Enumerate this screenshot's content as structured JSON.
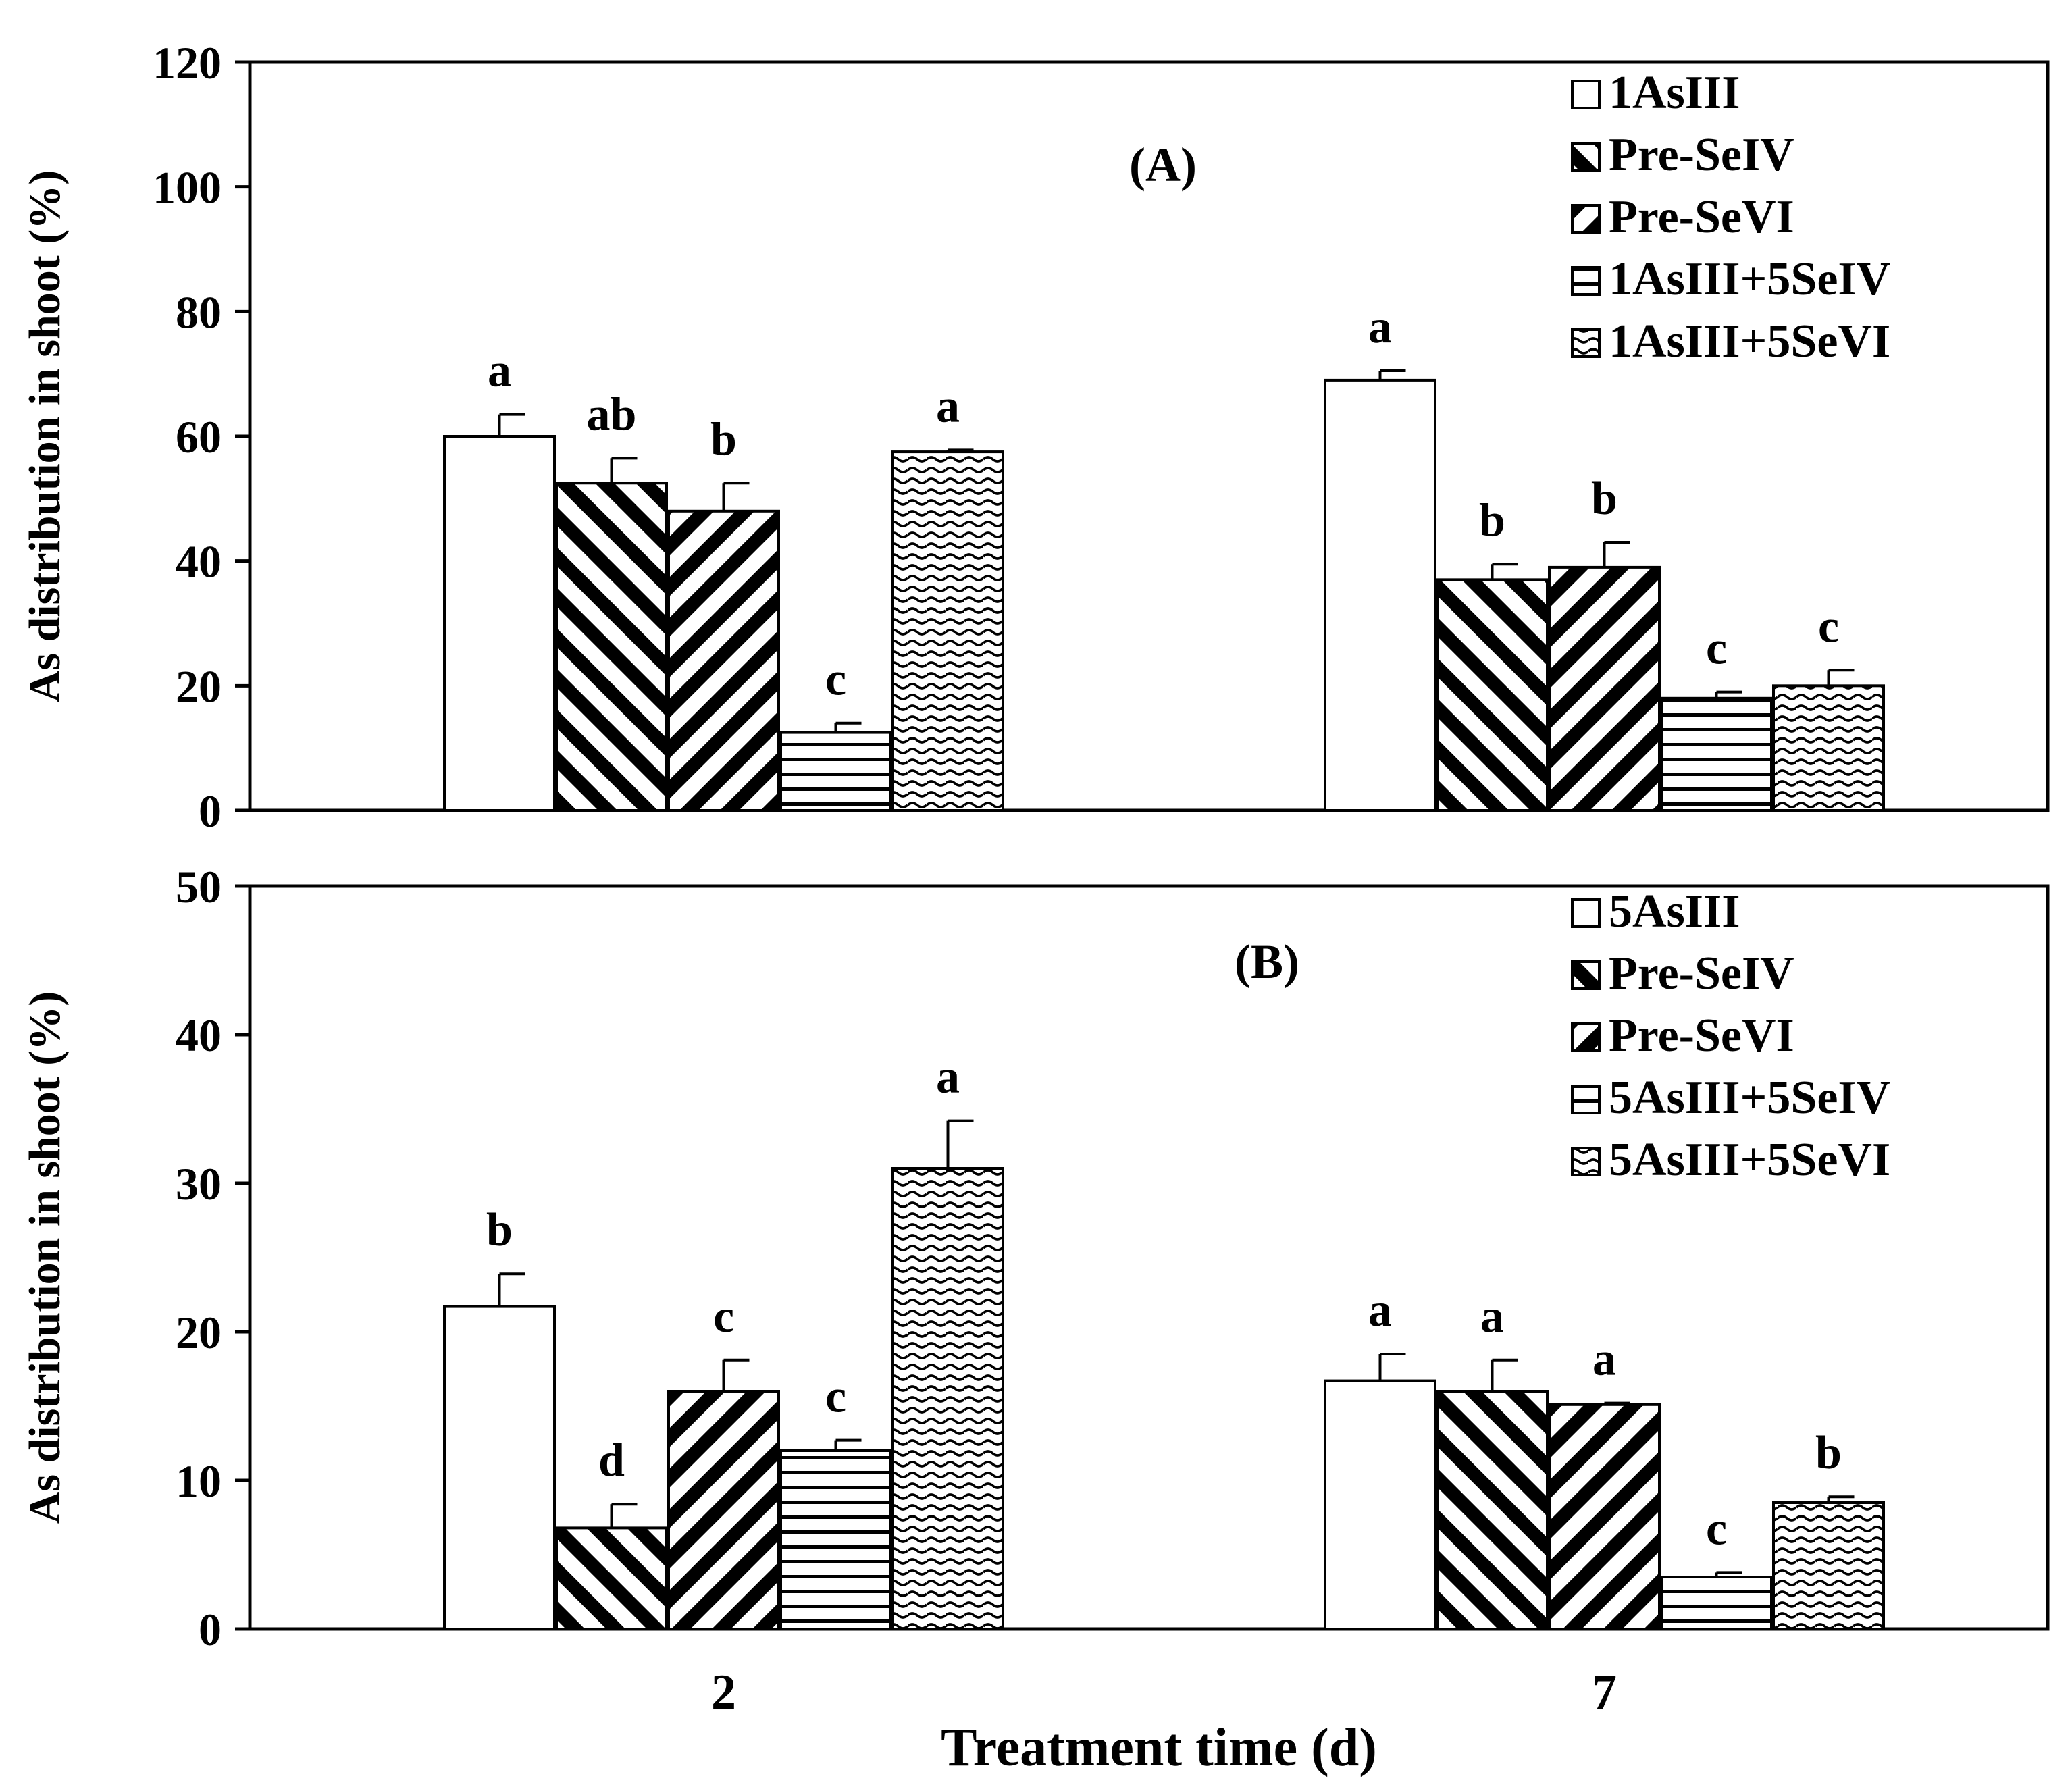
{
  "chart_data": [
    {
      "type": "bar",
      "panel_label": "(A)",
      "categories": [
        "2",
        "7"
      ],
      "ylabel": "As distribution in shoot (%)",
      "xlabel": "",
      "ylim": [
        0,
        120
      ],
      "yticks": [
        0,
        20,
        40,
        60,
        80,
        100,
        120
      ],
      "legend_position": "top-right",
      "series": [
        {
          "name": "1AsIII",
          "pattern": "white",
          "values": [
            60,
            69
          ],
          "errors": [
            3.5,
            1.5
          ],
          "letters": [
            "a",
            "a"
          ]
        },
        {
          "name": "Pre-SeIV",
          "pattern": "diag-back",
          "values": [
            52.5,
            37
          ],
          "errors": [
            4,
            2.5
          ],
          "letters": [
            "ab",
            "b"
          ]
        },
        {
          "name": "Pre-SeVI",
          "pattern": "diag-fwd",
          "values": [
            48,
            39
          ],
          "errors": [
            4.5,
            4
          ],
          "letters": [
            "b",
            "b"
          ]
        },
        {
          "name": "1AsIII+5SeIV",
          "pattern": "horiz",
          "values": [
            12.5,
            18
          ],
          "errors": [
            1.5,
            1
          ],
          "letters": [
            "c",
            "c"
          ]
        },
        {
          "name": "1AsIII+5SeVI",
          "pattern": "wave",
          "values": [
            57.5,
            20
          ],
          "errors": [
            0.3,
            2.5
          ],
          "letters": [
            "a",
            "c"
          ]
        }
      ]
    },
    {
      "type": "bar",
      "panel_label": "(B)",
      "categories": [
        "2",
        "7"
      ],
      "ylabel": "As distribution in shoot (%)",
      "xlabel": "Treatment time (d)",
      "ylim": [
        0,
        50
      ],
      "yticks": [
        0,
        10,
        20,
        30,
        40,
        50
      ],
      "legend_position": "top-right",
      "series": [
        {
          "name": "5AsIII",
          "pattern": "white",
          "values": [
            21.7,
            16.7
          ],
          "errors": [
            2.2,
            1.8
          ],
          "letters": [
            "b",
            "a"
          ]
        },
        {
          "name": "Pre-SeIV",
          "pattern": "diag-back",
          "values": [
            6.8,
            16
          ],
          "errors": [
            1.6,
            2.1
          ],
          "letters": [
            "d",
            "a"
          ]
        },
        {
          "name": "Pre-SeVI",
          "pattern": "diag-fwd",
          "values": [
            16,
            15.1
          ],
          "errors": [
            2.1,
            0.1
          ],
          "letters": [
            "c",
            "a"
          ]
        },
        {
          "name": "5AsIII+5SeIV",
          "pattern": "horiz",
          "values": [
            12,
            3.5
          ],
          "errors": [
            0.7,
            0.3
          ],
          "letters": [
            "c",
            "c"
          ]
        },
        {
          "name": "5AsIII+5SeVI",
          "pattern": "wave",
          "values": [
            31,
            8.5
          ],
          "errors": [
            3.2,
            0.4
          ],
          "letters": [
            "a",
            "b"
          ]
        }
      ]
    }
  ]
}
